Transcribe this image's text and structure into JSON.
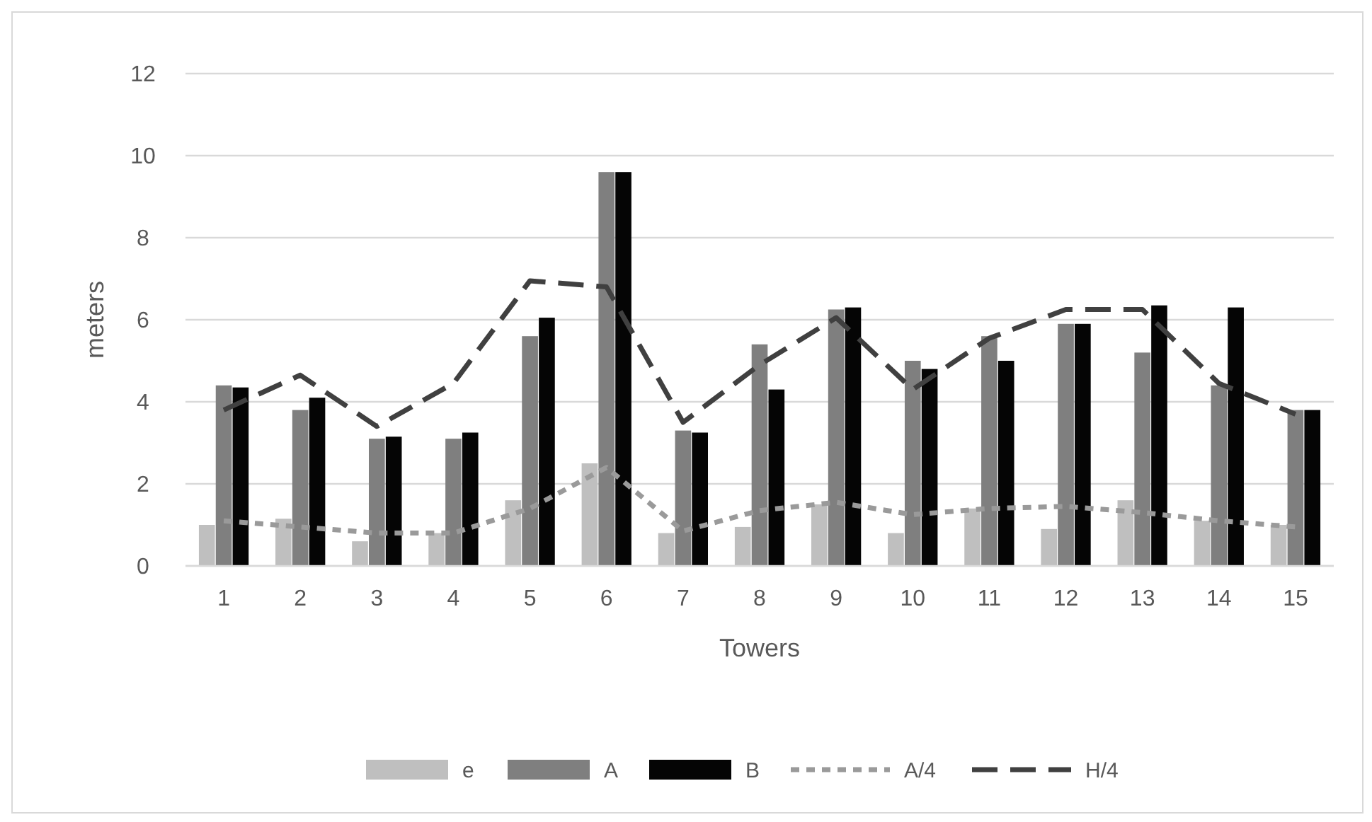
{
  "chart_data": {
    "type": "bar",
    "xlabel": "Towers",
    "ylabel": "meters",
    "categories": [
      "1",
      "2",
      "3",
      "4",
      "5",
      "6",
      "7",
      "8",
      "9",
      "10",
      "11",
      "12",
      "13",
      "14",
      "15"
    ],
    "series": [
      {
        "name": "e",
        "color": "#bfbfbf",
        "values": [
          1.0,
          1.15,
          0.6,
          0.8,
          1.6,
          2.5,
          0.8,
          0.95,
          1.5,
          0.8,
          1.4,
          0.9,
          1.6,
          1.1,
          1.0
        ]
      },
      {
        "name": "A",
        "color": "#7f7f7f",
        "values": [
          4.4,
          3.8,
          3.1,
          3.1,
          5.6,
          9.6,
          3.3,
          5.4,
          6.25,
          5.0,
          5.6,
          5.9,
          5.2,
          4.4,
          3.8
        ]
      },
      {
        "name": "B",
        "color": "#050505",
        "values": [
          4.35,
          4.1,
          3.15,
          3.25,
          6.05,
          9.6,
          3.25,
          4.3,
          6.3,
          4.8,
          5.0,
          5.9,
          6.35,
          6.3,
          3.8
        ]
      },
      {
        "name": "A/4",
        "type": "line",
        "color": "#9a9a9a",
        "line_style": "dotted",
        "values": [
          1.1,
          0.95,
          0.8,
          0.8,
          1.4,
          2.4,
          0.85,
          1.35,
          1.55,
          1.25,
          1.4,
          1.45,
          1.3,
          1.1,
          0.95
        ]
      },
      {
        "name": "H/4",
        "type": "line",
        "color": "#404040",
        "line_style": "dashed",
        "values": [
          3.8,
          4.65,
          3.4,
          4.45,
          6.95,
          6.8,
          3.5,
          4.9,
          6.05,
          4.3,
          5.55,
          6.25,
          6.25,
          4.45,
          3.7
        ]
      }
    ],
    "ylim": [
      0,
      12
    ],
    "yticks": [
      0,
      2,
      4,
      6,
      8,
      10,
      12
    ],
    "grid": "y",
    "legend": "bottom",
    "marker": "none"
  }
}
